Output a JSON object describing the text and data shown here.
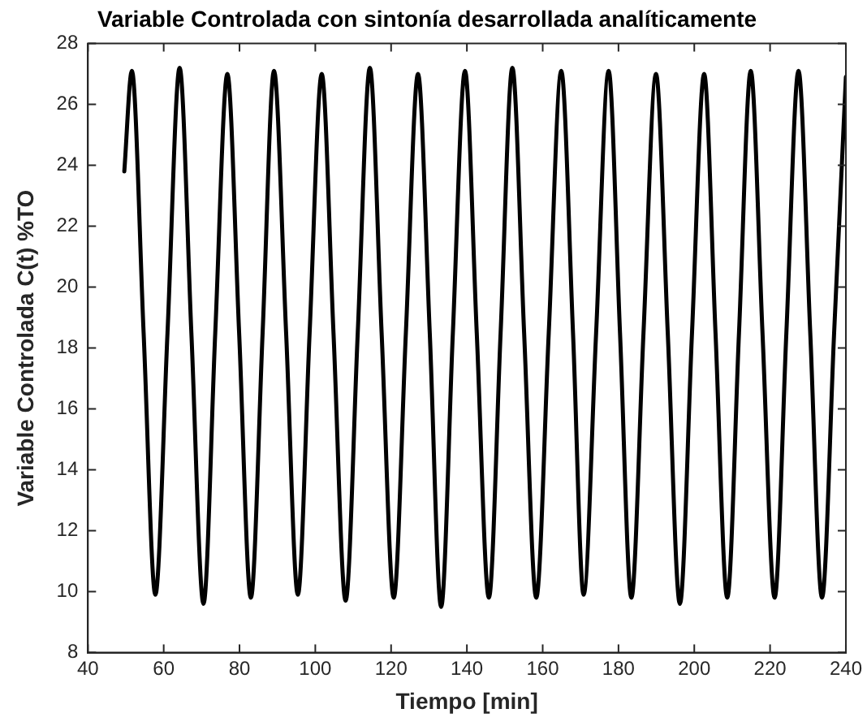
{
  "chart_data": {
    "type": "line",
    "title": "Variable Controlada con sintonía desarrollada analíticamente",
    "xlabel": "Tiempo [min]",
    "ylabel": "Variable Controlada C(t) %TO",
    "x": [
      49.6,
      51.6,
      54.7,
      57.8,
      61.0,
      64.2,
      67.3,
      70.5,
      73.6,
      76.8,
      79.9,
      83.0,
      86.1,
      89.1,
      92.3,
      95.4,
      98.5,
      101.7,
      104.8,
      108.0,
      111.2,
      114.4,
      117.5,
      120.7,
      123.9,
      127.1,
      130.2,
      133.2,
      136.3,
      139.5,
      142.6,
      145.8,
      148.9,
      152.0,
      155.1,
      158.3,
      161.6,
      164.9,
      168.0,
      170.8,
      174.1,
      177.4,
      180.4,
      183.4,
      186.6,
      189.9,
      193.0,
      196.2,
      199.4,
      202.6,
      205.6,
      208.7,
      211.8,
      214.9,
      218.0,
      221.2,
      224.3,
      227.5,
      230.6,
      233.7,
      236.9,
      240.0
    ],
    "series": [
      {
        "color": "#000000",
        "values": [
          23.8,
          27.1,
          18.5,
          9.9,
          18.5,
          27.2,
          18.5,
          9.6,
          18.5,
          27.0,
          18.5,
          9.8,
          18.5,
          27.1,
          18.5,
          9.9,
          18.5,
          27.0,
          18.5,
          9.7,
          18.5,
          27.2,
          18.5,
          9.8,
          18.5,
          27.0,
          18.5,
          9.5,
          18.5,
          27.1,
          18.5,
          9.8,
          18.5,
          27.2,
          18.5,
          9.8,
          18.5,
          27.1,
          18.5,
          9.9,
          18.5,
          27.1,
          18.5,
          9.8,
          18.5,
          27.0,
          18.5,
          9.6,
          18.5,
          27.0,
          18.5,
          9.8,
          18.5,
          27.1,
          18.5,
          9.8,
          18.5,
          27.1,
          18.5,
          9.8,
          18.5,
          26.9
        ]
      }
    ],
    "xlim": [
      40,
      240
    ],
    "xticks": [
      40,
      60,
      80,
      100,
      120,
      140,
      160,
      180,
      200,
      220,
      240
    ],
    "ylim": [
      8,
      28
    ],
    "yticks": [
      8,
      10,
      12,
      14,
      16,
      18,
      20,
      22,
      24,
      26,
      28
    ],
    "grid": false,
    "legend": false,
    "marker": "none",
    "line_style": "solid"
  }
}
